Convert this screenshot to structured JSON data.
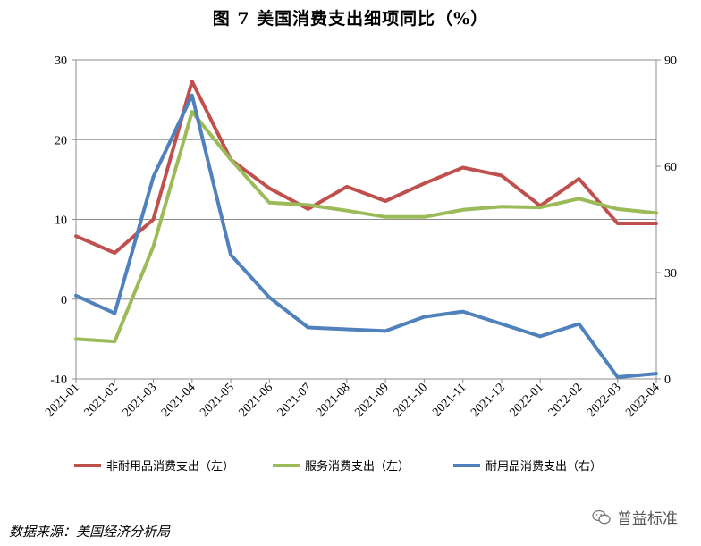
{
  "title": "图 7  美国消费支出细项同比（%）",
  "source": "数据来源：美国经济分析局",
  "watermark": "普益标准",
  "chart_data": {
    "type": "line",
    "x": [
      "2021-01",
      "2021-02",
      "2021-03",
      "2021-04",
      "2021-05",
      "2021-06",
      "2021-07",
      "2021-08",
      "2021-09",
      "2021-10",
      "2021-11",
      "2021-12",
      "2022-01",
      "2022-02",
      "2022-03",
      "2022-04"
    ],
    "y_left": {
      "range": [
        -10,
        30
      ],
      "ticks": [
        "30",
        "20",
        "10",
        "0",
        "-10"
      ]
    },
    "y_right": {
      "range": [
        0,
        90
      ],
      "ticks": [
        "90",
        "60",
        "30",
        "0"
      ]
    },
    "grid": "horizontal",
    "legend_position": "bottom",
    "series": [
      {
        "name": "非耐用品消费支出（左）",
        "axis": "left",
        "color": "#c0504d",
        "values": [
          7.9,
          5.8,
          10.0,
          27.3,
          17.5,
          13.9,
          11.3,
          14.1,
          12.3,
          14.5,
          16.5,
          15.5,
          11.7,
          15.1,
          9.5,
          9.5
        ]
      },
      {
        "name": "服务消费支出（左）",
        "axis": "left",
        "color": "#9bbb59",
        "values": [
          -5.0,
          -5.3,
          6.6,
          23.5,
          17.5,
          12.1,
          11.8,
          11.1,
          10.3,
          10.3,
          11.2,
          11.6,
          11.5,
          12.6,
          11.3,
          10.8
        ]
      },
      {
        "name": "耐用品消费支出（右）",
        "axis": "right",
        "color": "#4f81bd",
        "values": [
          23.5,
          18.5,
          57.0,
          80.0,
          35.0,
          23.0,
          14.5,
          14.0,
          13.5,
          17.5,
          19.0,
          15.5,
          12.0,
          15.5,
          0.5,
          1.5
        ]
      }
    ]
  }
}
